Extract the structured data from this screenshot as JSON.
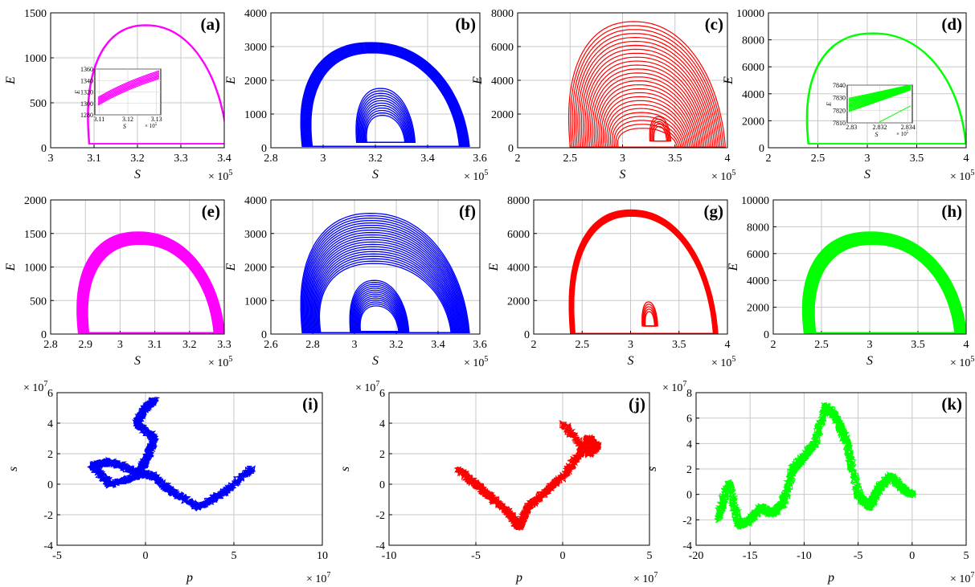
{
  "chart_data": [
    {
      "id": "a",
      "label": "(a)",
      "type": "line",
      "xlabel": "S",
      "ylabel": "E",
      "x_multiplier": "× 10^5",
      "x_ticks": [
        "3",
        "3.1",
        "3.2",
        "3.3",
        "3.4"
      ],
      "y_ticks": [
        "0",
        "500",
        "1000",
        "1500"
      ],
      "xlim": [
        300000,
        340000
      ],
      "ylim": [
        0,
        1500
      ],
      "color": "#ff00ff",
      "shape": "limit-cycle",
      "series": [
        {
          "x": [
            310500,
            315000,
            322000,
            330000,
            329500,
            326000,
            318000,
            312000,
            310500
          ],
          "y": [
            900,
            1370,
            1180,
            400,
            10,
            10,
            10,
            200,
            900
          ]
        }
      ],
      "inset": {
        "xlabel": "S",
        "ylabel": "E",
        "x_ticks": [
          "3.11",
          "3.12",
          "3.13"
        ],
        "y_ticks": [
          "1280",
          "1300",
          "1320",
          "1340",
          "1360"
        ],
        "x_multiplier": "× 10^5",
        "xlim": [
          310500,
          313000
        ],
        "ylim": [
          1280,
          1360
        ]
      }
    },
    {
      "id": "b",
      "label": "(b)",
      "type": "line",
      "xlabel": "S",
      "ylabel": "E",
      "x_multiplier": "× 10^5",
      "x_ticks": [
        "2.8",
        "3",
        "3.2",
        "3.4",
        "3.6"
      ],
      "y_ticks": [
        "0",
        "1000",
        "2000",
        "3000",
        "4000"
      ],
      "xlim": [
        280000,
        360000
      ],
      "ylim": [
        0,
        4000
      ],
      "color": "#0000ff",
      "shape": "two-band",
      "series": [
        {
          "x": [
            285000,
            310000,
            335000,
            350000,
            347000,
            290000,
            285000
          ],
          "y": [
            1300,
            3050,
            2600,
            800,
            0,
            0,
            1300
          ]
        },
        {
          "x": [
            306000,
            318000,
            330000,
            328000,
            308000,
            306000
          ],
          "y": [
            800,
            1700,
            1000,
            400,
            300,
            800
          ]
        }
      ]
    },
    {
      "id": "c",
      "label": "(c)",
      "type": "line",
      "xlabel": "S",
      "ylabel": "E",
      "x_multiplier": "× 10^5",
      "x_ticks": [
        "2",
        "2.5",
        "3",
        "3.5",
        "4"
      ],
      "y_ticks": [
        "0",
        "2000",
        "4000",
        "6000",
        "8000"
      ],
      "xlim": [
        200000,
        400000
      ],
      "ylim": [
        0,
        8000
      ],
      "color": "#ff0000",
      "shape": "nested-spiral",
      "series": [
        {
          "x": [
            240000,
            300000,
            360000,
            385000,
            380000,
            245000,
            240000
          ],
          "y": [
            2000,
            7600,
            6500,
            1500,
            0,
            0,
            2000
          ]
        }
      ]
    },
    {
      "id": "d",
      "label": "(d)",
      "type": "line",
      "xlabel": "S",
      "ylabel": "E",
      "x_multiplier": "× 10^5",
      "x_ticks": [
        "2",
        "2.5",
        "3",
        "3.5",
        "4"
      ],
      "y_ticks": [
        "0",
        "2000",
        "4000",
        "6000",
        "8000",
        "10000"
      ],
      "xlim": [
        200000,
        400000
      ],
      "ylim": [
        0,
        10000
      ],
      "color": "#00ff00",
      "shape": "limit-cycle",
      "series": [
        {
          "x": [
            240000,
            305000,
            360000,
            385000,
            380000,
            245000,
            240000
          ],
          "y": [
            2500,
            8500,
            7200,
            1500,
            0,
            0,
            2500
          ]
        }
      ],
      "inset": {
        "xlabel": "S",
        "ylabel": "E",
        "x_ticks": [
          "2.83",
          "2.832",
          "2.834"
        ],
        "y_ticks": [
          "7810",
          "7820",
          "7830",
          "7840"
        ],
        "x_multiplier": "× 10^5",
        "xlim": [
          282900,
          283500
        ],
        "ylim": [
          7810,
          7840
        ]
      }
    },
    {
      "id": "e",
      "label": "(e)",
      "type": "line",
      "xlabel": "S",
      "ylabel": "E",
      "x_multiplier": "× 10^5",
      "x_ticks": [
        "2.8",
        "2.9",
        "3",
        "3.1",
        "3.2",
        "3.3"
      ],
      "y_ticks": [
        "0",
        "500",
        "1000",
        "1500",
        "2000"
      ],
      "xlim": [
        280000,
        330000
      ],
      "ylim": [
        0,
        2000
      ],
      "color": "#ff00ff",
      "shape": "thick-band",
      "series": [
        {
          "x": [
            290000,
            302000,
            318000,
            322000,
            300000,
            290000
          ],
          "y": [
            500,
            1480,
            1000,
            200,
            0,
            500
          ]
        }
      ]
    },
    {
      "id": "f",
      "label": "(f)",
      "type": "line",
      "xlabel": "S",
      "ylabel": "E",
      "x_multiplier": "× 10^5",
      "x_ticks": [
        "2.6",
        "2.8",
        "3",
        "3.2",
        "3.4",
        "3.6"
      ],
      "y_ticks": [
        "0",
        "1000",
        "2000",
        "3000",
        "4000"
      ],
      "xlim": [
        260000,
        360000
      ],
      "ylim": [
        0,
        4000
      ],
      "color": "#0000ff",
      "shape": "two-band-noisy",
      "series": [
        {
          "x": [
            265000,
            300000,
            330000,
            342000,
            290000,
            265000
          ],
          "y": [
            1500,
            3550,
            3000,
            600,
            0,
            1500
          ]
        },
        {
          "x": [
            297000,
            308000,
            320000,
            318000,
            298000,
            297000
          ],
          "y": [
            700,
            1700,
            900,
            300,
            200,
            700
          ]
        }
      ]
    },
    {
      "id": "g",
      "label": "(g)",
      "type": "line",
      "xlabel": "S",
      "ylabel": "E",
      "x_multiplier": "× 10^5",
      "x_ticks": [
        "2",
        "2.5",
        "3",
        "3.5",
        "4"
      ],
      "y_ticks": [
        "0",
        "2000",
        "4000",
        "6000",
        "8000"
      ],
      "xlim": [
        200000,
        400000
      ],
      "ylim": [
        0,
        8000
      ],
      "color": "#ff0000",
      "shape": "band-with-small-loop",
      "series": [
        {
          "x": [
            230000,
            290000,
            350000,
            372000,
            240000,
            230000
          ],
          "y": [
            2500,
            7500,
            6500,
            1500,
            0,
            2500
          ]
        },
        {
          "x": [
            306000,
            314000,
            322000,
            320000,
            308000,
            306000
          ],
          "y": [
            900,
            2000,
            1100,
            300,
            300,
            900
          ]
        }
      ]
    },
    {
      "id": "h",
      "label": "(h)",
      "type": "line",
      "xlabel": "S",
      "ylabel": "E",
      "x_multiplier": "× 10^5",
      "x_ticks": [
        "2",
        "2.5",
        "3",
        "3.5",
        "4"
      ],
      "y_ticks": [
        "0",
        "2000",
        "4000",
        "6000",
        "8000",
        "10000"
      ],
      "xlim": [
        200000,
        400000
      ],
      "ylim": [
        0,
        10000
      ],
      "color": "#00ff00",
      "shape": "thick-band",
      "series": [
        {
          "x": [
            230000,
            295000,
            360000,
            372000,
            240000,
            230000
          ],
          "y": [
            2500,
            8900,
            7200,
            1500,
            0,
            2500
          ]
        }
      ]
    },
    {
      "id": "i",
      "label": "(i)",
      "type": "line",
      "xlabel": "p",
      "ylabel": "s",
      "x_multiplier": "× 10^7",
      "y_multiplier": "× 10^7",
      "x_ticks": [
        "-5",
        "0",
        "5",
        "10"
      ],
      "y_ticks": [
        "-4",
        "-2",
        "0",
        "2",
        "4",
        "6"
      ],
      "xlim": [
        -5,
        10
      ],
      "ylim": [
        -4,
        6
      ],
      "color": "#0000ff",
      "shape": "random-walk",
      "series": [
        {
          "x": [
            6,
            4.5,
            3,
            1.5,
            0.5,
            -0.5,
            -2,
            -3,
            -2,
            -0.5,
            0,
            0.5,
            -0.5,
            0,
            0.5
          ],
          "y": [
            1,
            -0.5,
            -1.5,
            -0.5,
            0.5,
            0.8,
            1.5,
            1.2,
            0,
            0.5,
            1.5,
            3,
            4,
            5,
            5.5
          ]
        }
      ]
    },
    {
      "id": "j",
      "label": "(j)",
      "type": "line",
      "xlabel": "p",
      "ylabel": "s",
      "x_multiplier": "× 10^7",
      "y_multiplier": "× 10^7",
      "x_ticks": [
        "-10",
        "-5",
        "0",
        "5"
      ],
      "y_ticks": [
        "-4",
        "-2",
        "0",
        "2",
        "4",
        "6"
      ],
      "xlim": [
        -10,
        5
      ],
      "ylim": [
        -4,
        6
      ],
      "color": "#ff0000",
      "shape": "random-walk",
      "series": [
        {
          "x": [
            -6,
            -5,
            -4,
            -3,
            -2.5,
            -2,
            -1,
            0,
            1,
            1.5,
            2,
            1.5,
            0
          ],
          "y": [
            1,
            0,
            -1,
            -2,
            -2.8,
            -1.5,
            -0.5,
            0.5,
            2,
            3,
            2.5,
            2,
            4
          ]
        }
      ]
    },
    {
      "id": "k",
      "label": "(k)",
      "type": "line",
      "xlabel": "p",
      "ylabel": "s",
      "x_multiplier": "× 10^7",
      "y_multiplier": "× 10^7",
      "x_ticks": [
        "-20",
        "-15",
        "-10",
        "-5",
        "0",
        "5"
      ],
      "y_ticks": [
        "-4",
        "-2",
        "0",
        "2",
        "4",
        "6",
        "8"
      ],
      "xlim": [
        -20,
        5
      ],
      "ylim": [
        -4,
        8
      ],
      "color": "#00ff00",
      "shape": "random-walk",
      "series": [
        {
          "x": [
            0,
            -1,
            -2,
            -3,
            -4,
            -5,
            -6,
            -7,
            -8,
            -9,
            -10,
            -11,
            -12,
            -13,
            -14,
            -15,
            -16,
            -17,
            -18
          ],
          "y": [
            0,
            0.5,
            1.5,
            0.5,
            -1,
            0,
            4,
            6,
            7,
            4,
            3,
            2,
            -0.8,
            -1.5,
            -1,
            -2,
            -2.5,
            1,
            -2
          ]
        }
      ]
    }
  ]
}
